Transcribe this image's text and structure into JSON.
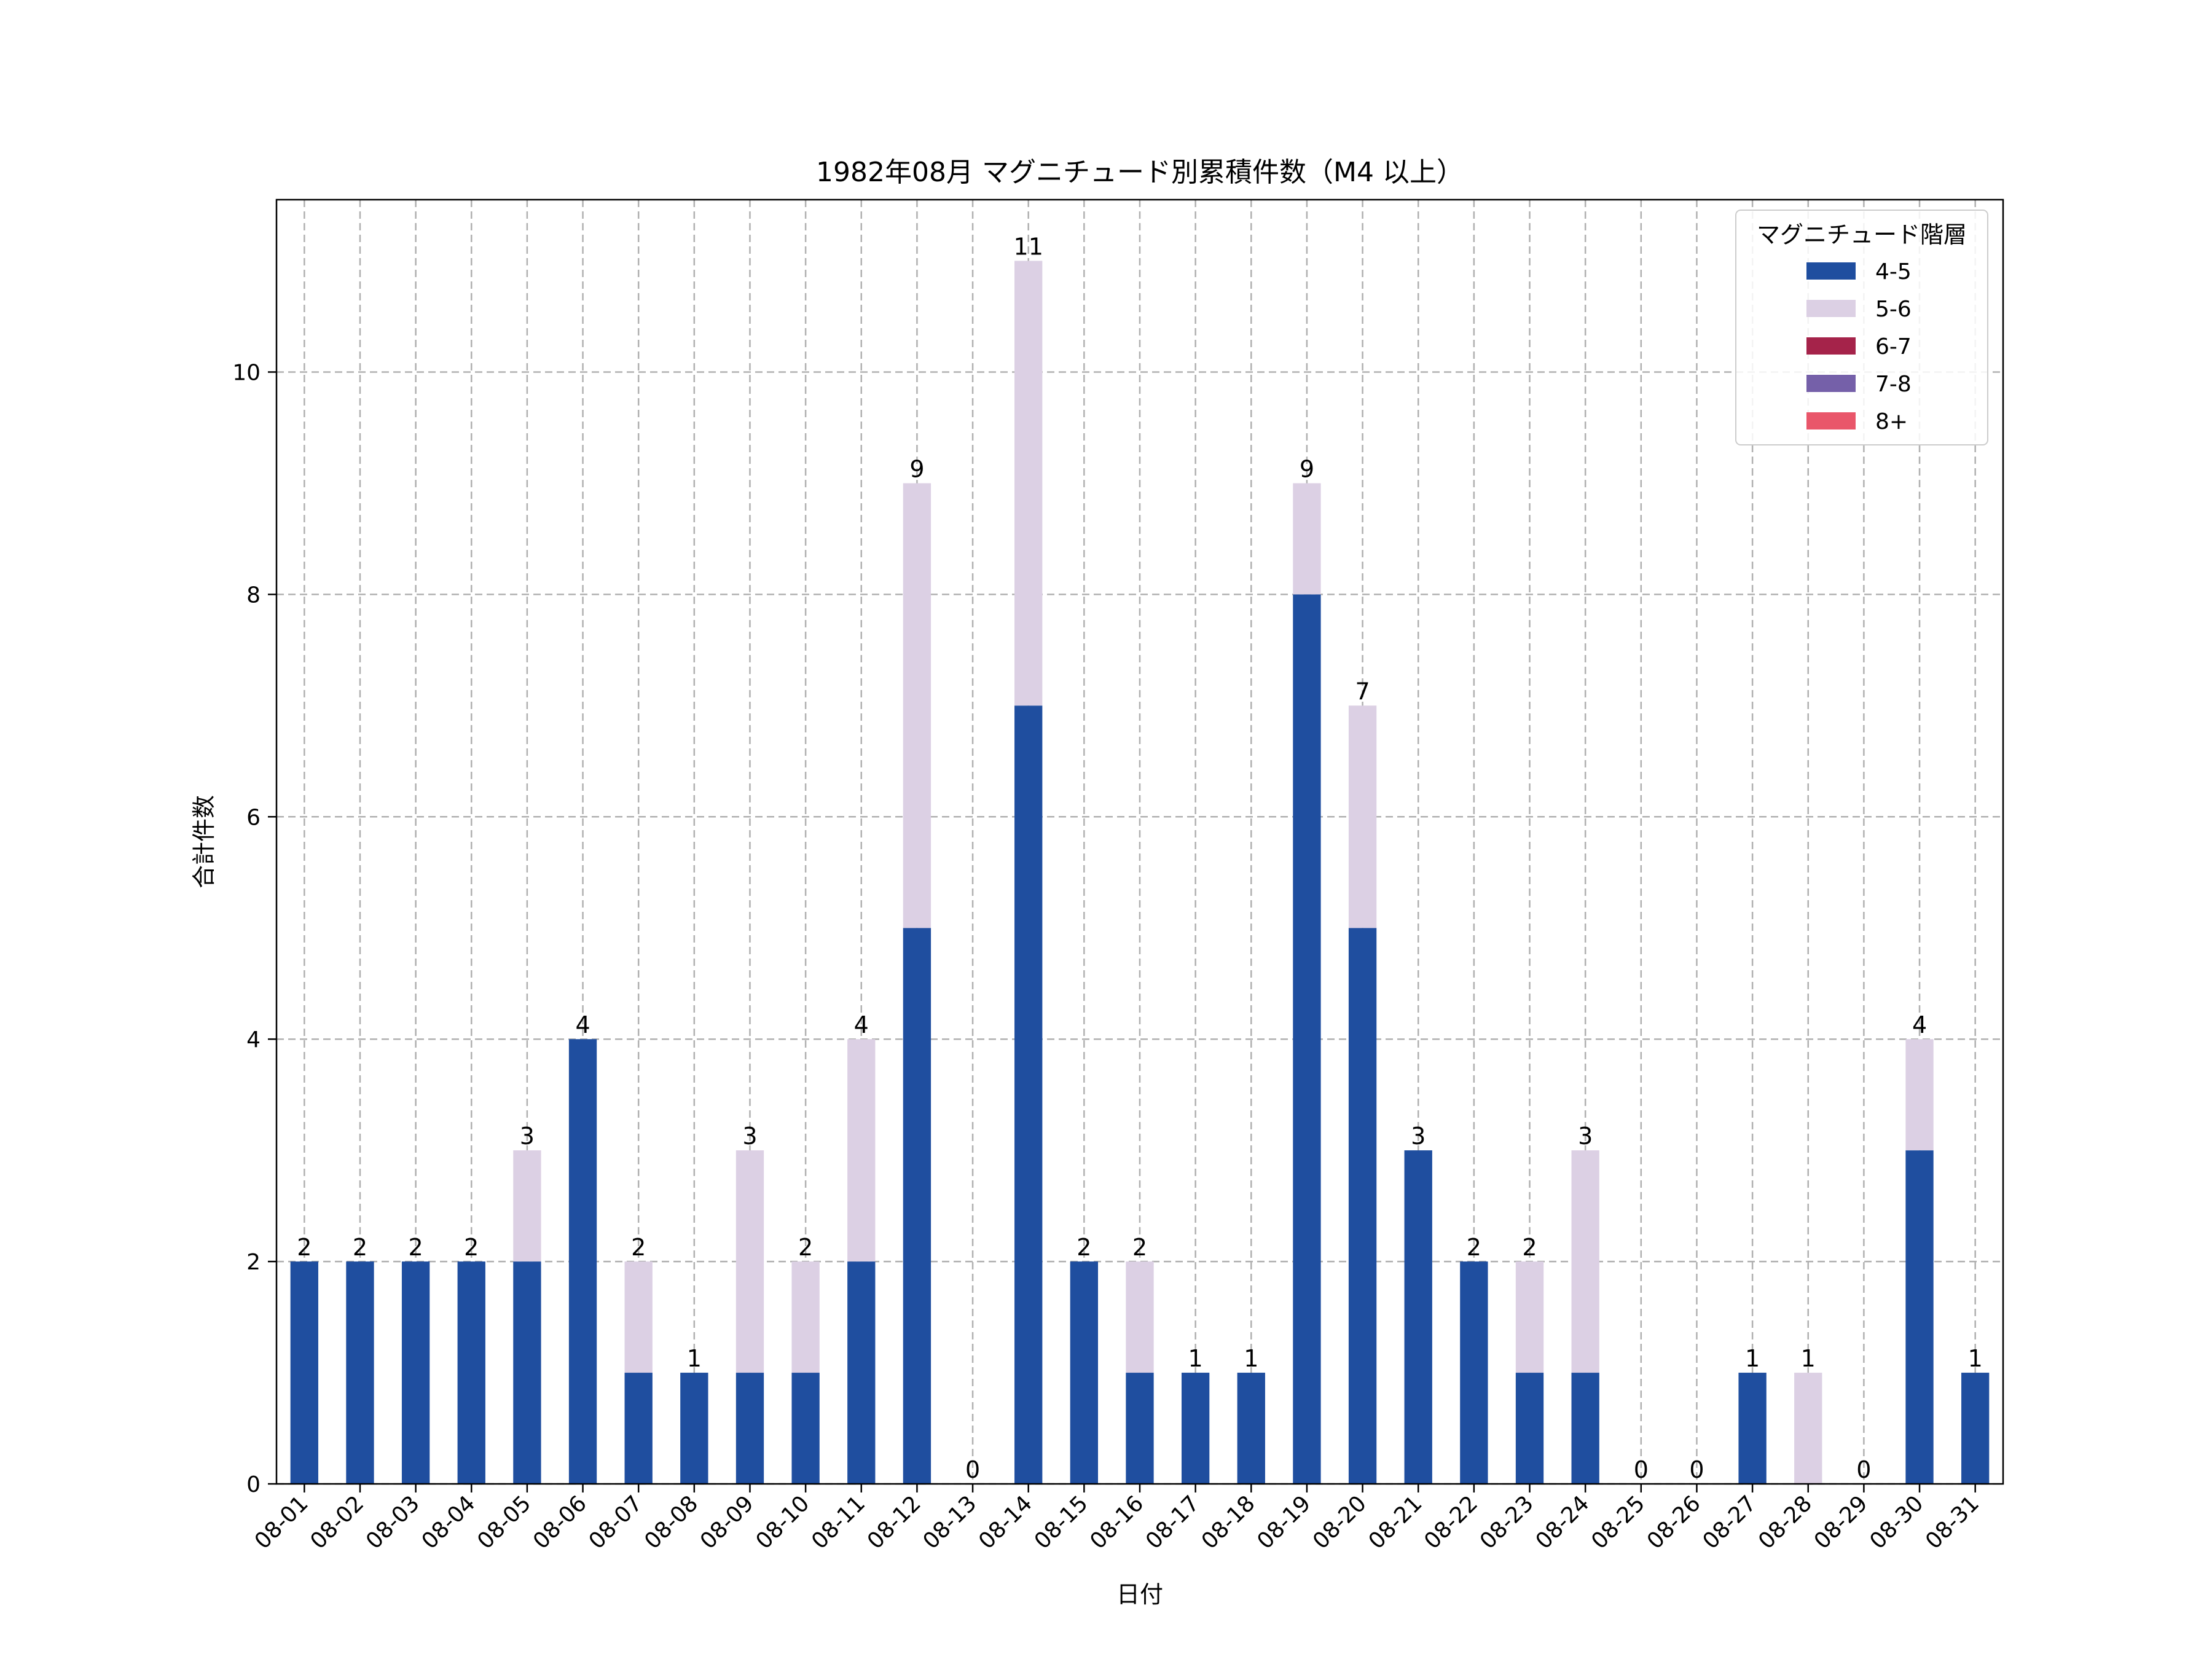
{
  "chart_data": {
    "type": "bar",
    "stacked": true,
    "title": "1982年08月 マグニチュード別累積件数（M4 以上）",
    "xlabel": "日付",
    "ylabel": "合計件数",
    "ylim": [
      0,
      11.55
    ],
    "yticks": [
      0,
      2,
      4,
      6,
      8,
      10
    ],
    "grid": true,
    "legend_position": "top-right",
    "legend_title": "マグニチュード階層",
    "categories": [
      "08-01",
      "08-02",
      "08-03",
      "08-04",
      "08-05",
      "08-06",
      "08-07",
      "08-08",
      "08-09",
      "08-10",
      "08-11",
      "08-12",
      "08-13",
      "08-14",
      "08-15",
      "08-16",
      "08-17",
      "08-18",
      "08-19",
      "08-20",
      "08-21",
      "08-22",
      "08-23",
      "08-24",
      "08-25",
      "08-26",
      "08-27",
      "08-28",
      "08-29",
      "08-30",
      "08-31"
    ],
    "series": [
      {
        "name": "4-5",
        "color": "#1f4e9f",
        "values": [
          2,
          2,
          2,
          2,
          2,
          4,
          1,
          1,
          1,
          1,
          2,
          5,
          0,
          7,
          2,
          1,
          1,
          1,
          8,
          5,
          3,
          2,
          1,
          1,
          0,
          0,
          1,
          0,
          0,
          3,
          1
        ]
      },
      {
        "name": "5-6",
        "color": "#dcd0e4",
        "values": [
          0,
          0,
          0,
          0,
          1,
          0,
          1,
          0,
          2,
          1,
          2,
          4,
          0,
          4,
          0,
          1,
          0,
          0,
          1,
          2,
          0,
          0,
          1,
          2,
          0,
          0,
          0,
          1,
          0,
          1,
          0
        ]
      },
      {
        "name": "6-7",
        "color": "#a5234a",
        "values": [
          0,
          0,
          0,
          0,
          0,
          0,
          0,
          0,
          0,
          0,
          0,
          0,
          0,
          0,
          0,
          0,
          0,
          0,
          0,
          0,
          0,
          0,
          0,
          0,
          0,
          0,
          0,
          0,
          0,
          0,
          0
        ]
      },
      {
        "name": "7-8",
        "color": "#7560a9",
        "values": [
          0,
          0,
          0,
          0,
          0,
          0,
          0,
          0,
          0,
          0,
          0,
          0,
          0,
          0,
          0,
          0,
          0,
          0,
          0,
          0,
          0,
          0,
          0,
          0,
          0,
          0,
          0,
          0,
          0,
          0,
          0
        ]
      },
      {
        "name": "8+",
        "color": "#e9566a",
        "values": [
          0,
          0,
          0,
          0,
          0,
          0,
          0,
          0,
          0,
          0,
          0,
          0,
          0,
          0,
          0,
          0,
          0,
          0,
          0,
          0,
          0,
          0,
          0,
          0,
          0,
          0,
          0,
          0,
          0,
          0,
          0
        ]
      }
    ],
    "totals": [
      "2",
      "2",
      "2",
      "2",
      "3",
      "4",
      "2",
      "1",
      "3",
      "2",
      "4",
      "9",
      "0",
      "11",
      "2",
      "2",
      "1",
      "1",
      "9",
      "7",
      "3",
      "2",
      "2",
      "3",
      "0",
      "0",
      "1",
      "1",
      "0",
      "4",
      "1"
    ]
  }
}
